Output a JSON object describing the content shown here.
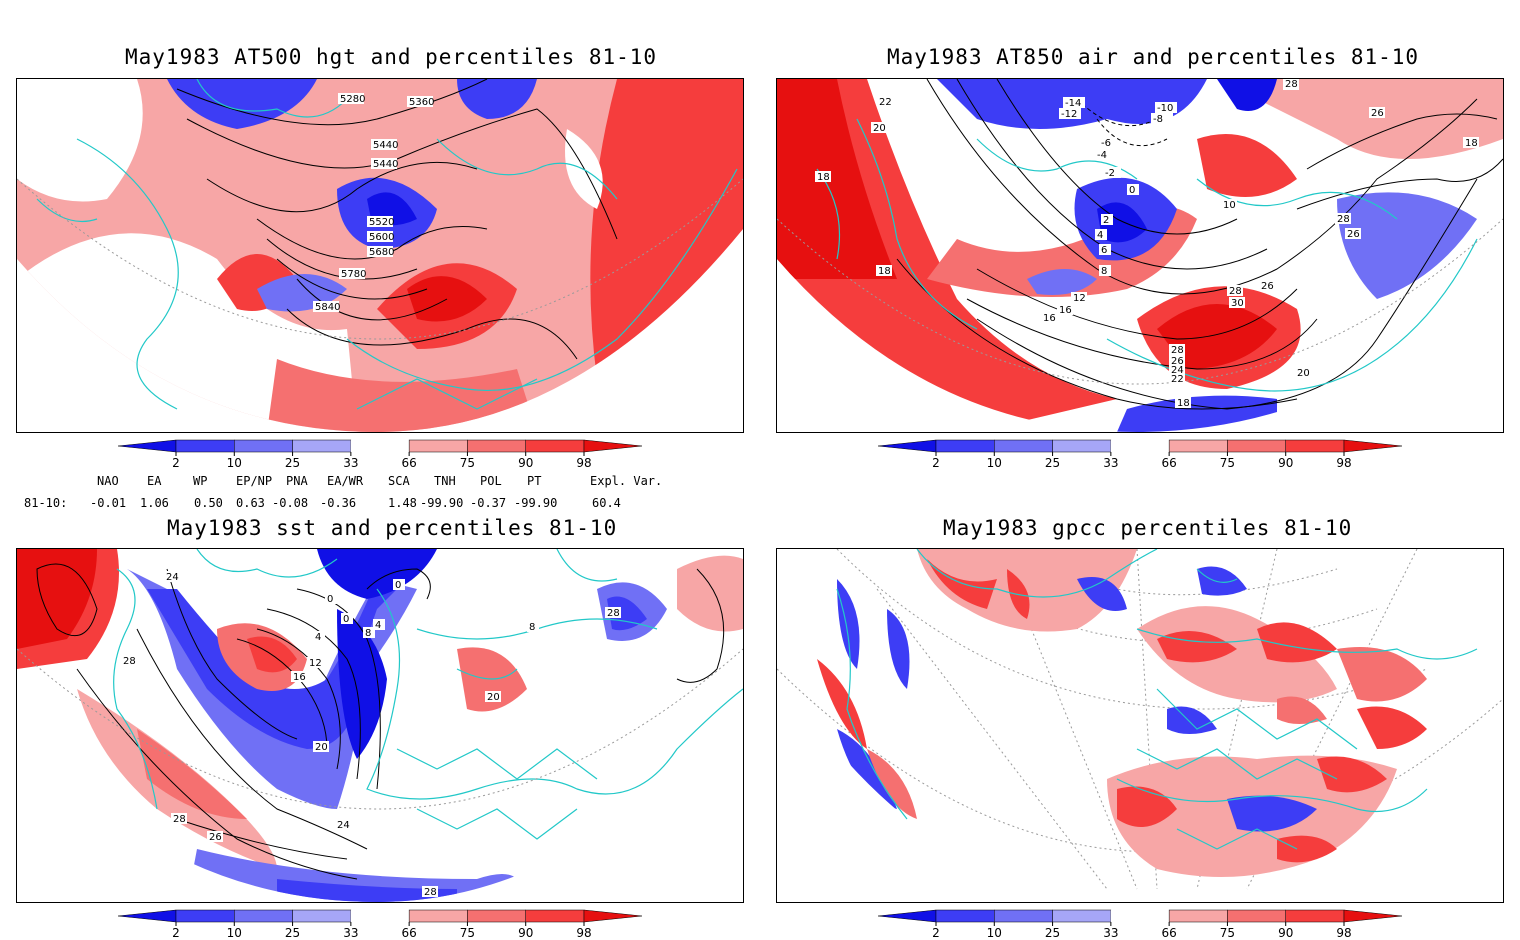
{
  "panels": [
    {
      "title": "May1983 AT500 hgt and percentiles 81-10",
      "contour_labels": [
        "5280",
        "5360",
        "5440",
        "5440",
        "5520",
        "5600",
        "5680",
        "5780",
        "5840"
      ]
    },
    {
      "title": "May1983 AT850 air and percentiles 81-10",
      "contour_labels": [
        "22",
        "20",
        "18",
        "18",
        "-14",
        "-12",
        "-10",
        "-8",
        "-6",
        "-4",
        "-2",
        "0",
        "2",
        "4",
        "6",
        "8",
        "12",
        "16",
        "16",
        "28",
        "30",
        "26",
        "28",
        "26",
        "24",
        "22",
        "18",
        "20",
        "10",
        "28",
        "26",
        "26",
        "18",
        "28"
      ]
    },
    {
      "title": "May1983 sst and percentiles 81-10",
      "contour_labels": [
        "24",
        "0",
        "0",
        "0",
        "4",
        "8",
        "4",
        "12",
        "16",
        "28",
        "20",
        "28",
        "20",
        "24",
        "26",
        "28",
        "28",
        "8"
      ]
    },
    {
      "title": "May1983 gpcc percentiles 81-10",
      "contour_labels": []
    }
  ],
  "colorbar": {
    "ticks": [
      "2",
      "10",
      "25",
      "33",
      "66",
      "75",
      "90",
      "98"
    ],
    "colors": [
      "#1010e6",
      "#3d3df5",
      "#7070f5",
      "#a6a6f7",
      "#ffffff",
      "#f7a6a6",
      "#f57070",
      "#f53d3d",
      "#e61010"
    ]
  },
  "teleconnections": {
    "header": [
      "NAO",
      "EA",
      "WP",
      "EP/NP",
      "PNA",
      "EA/WR",
      "SCA",
      "TNH",
      "POL",
      "PT",
      "Expl. Var."
    ],
    "row_label": "81-10:",
    "values": [
      "-0.01",
      "1.06",
      "0.50",
      "0.63",
      "-0.08",
      "-0.36",
      "1.48",
      "-99.90",
      "-0.37",
      "-99.90",
      "60.4"
    ]
  },
  "style": {
    "coast": "#22c8c8",
    "contour": "#000000",
    "grid": "#9a9a9a"
  }
}
